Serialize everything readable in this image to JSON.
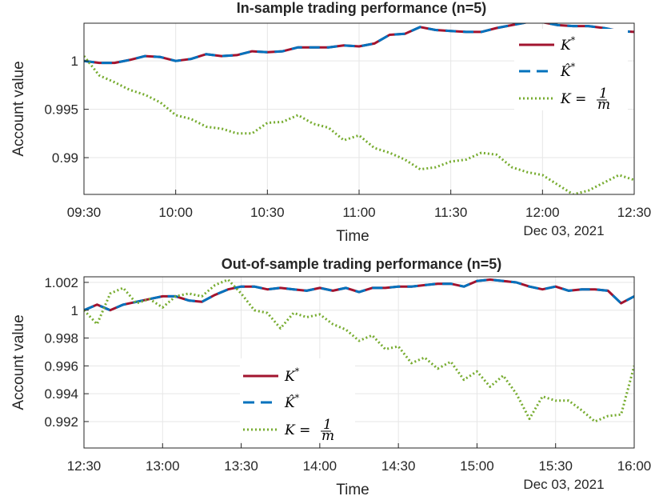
{
  "colors": {
    "k_star": "#a2142f",
    "k_hat": "#0072bd",
    "k_uniform": "#77ac30",
    "grid": "#e6e6e6",
    "axis": "#262626"
  },
  "chart_data": [
    {
      "type": "line",
      "title": "In-sample trading performance (n=5)",
      "xlabel": "Time",
      "ylabel": "Account value",
      "date_label": "Dec 03, 2021",
      "x_ticks": [
        "09:30",
        "10:00",
        "10:30",
        "11:00",
        "11:30",
        "12:00",
        "12:30"
      ],
      "x_range": [
        0,
        180
      ],
      "y_ticks": [
        0.99,
        0.995,
        1
      ],
      "y_tick_labels": [
        "0.99",
        "0.995",
        "1"
      ],
      "ylim": [
        0.9862,
        1.0039
      ],
      "grid": true,
      "legend_position": "top-right",
      "legend": [
        "K*",
        "K̂*",
        "K = 1/m"
      ],
      "x_minutes": [
        0,
        5,
        10,
        15,
        20,
        25,
        30,
        35,
        40,
        45,
        50,
        55,
        60,
        65,
        70,
        75,
        80,
        85,
        90,
        95,
        100,
        105,
        110,
        115,
        120,
        125,
        130,
        135,
        140,
        145,
        150,
        155,
        160,
        165,
        170,
        175,
        180
      ],
      "series": [
        {
          "name": "K*",
          "style": "solid",
          "values": [
            1.0,
            0.9998,
            0.9998,
            1.0001,
            1.0005,
            1.0004,
            1.0,
            1.0002,
            1.0007,
            1.0005,
            1.0006,
            1.001,
            1.0009,
            1.001,
            1.0014,
            1.0014,
            1.0014,
            1.0016,
            1.0015,
            1.0018,
            1.0027,
            1.0028,
            1.0035,
            1.0032,
            1.0031,
            1.003,
            1.003,
            1.0034,
            1.0037,
            1.004,
            1.004,
            1.0037,
            1.0036,
            1.0036,
            1.0034,
            1.0031,
            1.003
          ]
        },
        {
          "name": "K̂*",
          "style": "dashed",
          "values": [
            1.0,
            0.9998,
            0.9998,
            1.0001,
            1.0005,
            1.0004,
            1.0,
            1.0002,
            1.0007,
            1.0005,
            1.0006,
            1.001,
            1.0009,
            1.001,
            1.0014,
            1.0014,
            1.0014,
            1.0016,
            1.0015,
            1.0018,
            1.0027,
            1.0028,
            1.0035,
            1.0032,
            1.0031,
            1.003,
            1.003,
            1.0034,
            1.0037,
            1.004,
            1.004,
            1.0037,
            1.0036,
            1.0036,
            1.0034,
            1.0031,
            1.003
          ]
        },
        {
          "name": "K = 1/m",
          "style": "dotted",
          "values": [
            1.0005,
            0.9985,
            0.9978,
            0.997,
            0.9965,
            0.9957,
            0.9944,
            0.994,
            0.9932,
            0.993,
            0.9925,
            0.9925,
            0.9936,
            0.9937,
            0.9944,
            0.9935,
            0.9931,
            0.9918,
            0.9923,
            0.991,
            0.9905,
            0.9898,
            0.9888,
            0.989,
            0.9896,
            0.9898,
            0.9905,
            0.9903,
            0.989,
            0.9885,
            0.9882,
            0.9872,
            0.9862,
            0.9866,
            0.9874,
            0.9882,
            0.9877
          ]
        }
      ]
    },
    {
      "type": "line",
      "title": "Out-of-sample trading performance (n=5)",
      "xlabel": "Time",
      "ylabel": "Account value",
      "date_label": "Dec 03, 2021",
      "x_ticks": [
        "12:30",
        "13:00",
        "13:30",
        "14:00",
        "14:30",
        "15:00",
        "15:30",
        "16:00"
      ],
      "x_range": [
        0,
        210
      ],
      "y_ticks": [
        0.992,
        0.994,
        0.996,
        0.998,
        1,
        1.002
      ],
      "y_tick_labels": [
        "0.992",
        "0.994",
        "0.996",
        "0.998",
        "1",
        "1.002"
      ],
      "ylim": [
        0.9901,
        1.0024
      ],
      "grid": true,
      "legend_position": "bottom-left",
      "legend": [
        "K*",
        "K̂*",
        "K = 1/m"
      ],
      "x_minutes": [
        0,
        5,
        10,
        15,
        20,
        25,
        30,
        35,
        40,
        45,
        50,
        55,
        60,
        65,
        70,
        75,
        80,
        85,
        90,
        95,
        100,
        105,
        110,
        115,
        120,
        125,
        130,
        135,
        140,
        145,
        150,
        155,
        160,
        165,
        170,
        175,
        180,
        185,
        190,
        195,
        200,
        205,
        210
      ],
      "series": [
        {
          "name": "K*",
          "style": "solid",
          "values": [
            1.0,
            1.0004,
            1.0,
            1.0004,
            1.0006,
            1.0008,
            1.001,
            1.001,
            1.0007,
            1.0006,
            1.0011,
            1.0015,
            1.0017,
            1.0017,
            1.0015,
            1.0016,
            1.0015,
            1.0014,
            1.0016,
            1.0014,
            1.0016,
            1.0013,
            1.0016,
            1.0016,
            1.0017,
            1.0017,
            1.0018,
            1.0019,
            1.0019,
            1.0017,
            1.0021,
            1.0022,
            1.0021,
            1.002,
            1.0017,
            1.0015,
            1.0017,
            1.0014,
            1.0015,
            1.0015,
            1.0014,
            1.0005,
            1.001
          ]
        },
        {
          "name": "K̂*",
          "style": "dashed",
          "values": [
            1.0,
            1.0004,
            1.0,
            1.0004,
            1.0006,
            1.0008,
            1.001,
            1.001,
            1.0007,
            1.0006,
            1.0011,
            1.0015,
            1.0017,
            1.0017,
            1.0015,
            1.0016,
            1.0015,
            1.0014,
            1.0016,
            1.0014,
            1.0016,
            1.0013,
            1.0016,
            1.0016,
            1.0017,
            1.0017,
            1.0018,
            1.0019,
            1.0019,
            1.0017,
            1.0021,
            1.0022,
            1.0021,
            1.002,
            1.0017,
            1.0015,
            1.0017,
            1.0014,
            1.0015,
            1.0015,
            1.0014,
            1.0005,
            1.001
          ]
        },
        {
          "name": "K = 1/m",
          "style": "dotted",
          "values": [
            1.0,
            0.999,
            1.0012,
            1.0016,
            1.0005,
            1.0008,
            1.0002,
            1.001,
            1.0012,
            1.001,
            1.0018,
            1.0022,
            1.0012,
            1.0,
            0.9998,
            0.9987,
            0.9998,
            0.9995,
            0.9997,
            0.999,
            0.9986,
            0.9978,
            0.9982,
            0.9972,
            0.9974,
            0.9962,
            0.9966,
            0.9958,
            0.9963,
            0.995,
            0.9956,
            0.9945,
            0.9953,
            0.994,
            0.9922,
            0.9938,
            0.9935,
            0.9935,
            0.9928,
            0.992,
            0.9924,
            0.9925,
            0.996
          ]
        }
      ]
    }
  ]
}
